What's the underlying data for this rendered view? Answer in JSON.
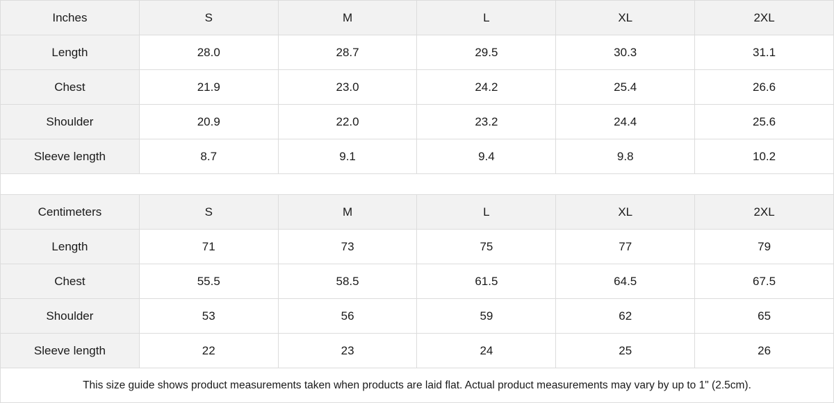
{
  "inches": {
    "header": [
      "Inches",
      "S",
      "M",
      "L",
      "XL",
      "2XL"
    ],
    "rows": [
      [
        "Length",
        "28.0",
        "28.7",
        "29.5",
        "30.3",
        "31.1"
      ],
      [
        "Chest",
        "21.9",
        "23.0",
        "24.2",
        "25.4",
        "26.6"
      ],
      [
        "Shoulder",
        "20.9",
        "22.0",
        "23.2",
        "24.4",
        "25.6"
      ],
      [
        "Sleeve length",
        "8.7",
        "9.1",
        "9.4",
        "9.8",
        "10.2"
      ]
    ]
  },
  "centimeters": {
    "header": [
      "Centimeters",
      "S",
      "M",
      "L",
      "XL",
      "2XL"
    ],
    "rows": [
      [
        "Length",
        "71",
        "73",
        "75",
        "77",
        "79"
      ],
      [
        "Chest",
        "55.5",
        "58.5",
        "61.5",
        "64.5",
        "67.5"
      ],
      [
        "Shoulder",
        "53",
        "56",
        "59",
        "62",
        "65"
      ],
      [
        "Sleeve length",
        "22",
        "23",
        "24",
        "25",
        "26"
      ]
    ]
  },
  "note": "This size guide shows product measurements taken when products are laid flat.  Actual product measurements may vary by up to 1\" (2.5cm).",
  "colors": {
    "header_bg": "#f2f2f2",
    "border": "#dcdcdc"
  }
}
